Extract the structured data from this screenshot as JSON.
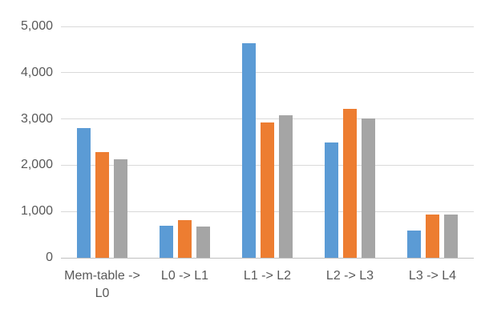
{
  "chart_data": {
    "type": "bar",
    "title": "",
    "xlabel": "",
    "ylabel": "",
    "categories": [
      "Mem-table -> L0",
      "L0 -> L1",
      "L1 -> L2",
      "L2 -> L3",
      "L3 -> L4"
    ],
    "series": [
      {
        "name": "blue",
        "color": "#5B9BD5",
        "values": [
          2800,
          700,
          4640,
          2490,
          590
        ]
      },
      {
        "name": "orange",
        "color": "#ED7D31",
        "values": [
          2280,
          820,
          2920,
          3220,
          930
        ]
      },
      {
        "name": "gray",
        "color": "#A5A5A5",
        "values": [
          2120,
          670,
          3080,
          3010,
          930
        ]
      }
    ],
    "ylim": [
      0,
      5000
    ],
    "yticks": [
      {
        "value": 0,
        "label": "0"
      },
      {
        "value": 1000,
        "label": "1,000"
      },
      {
        "value": 2000,
        "label": "2,000"
      },
      {
        "value": 3000,
        "label": "3,000"
      },
      {
        "value": 4000,
        "label": "4,000"
      },
      {
        "value": 5000,
        "label": "5,000"
      }
    ],
    "grid": true,
    "legend_position": "none"
  },
  "style": {
    "background": "#FFFFFF",
    "gridline_color": "#D9D9D9",
    "axis_line_color": "#BFBFBF",
    "tick_text_color": "#595959"
  }
}
